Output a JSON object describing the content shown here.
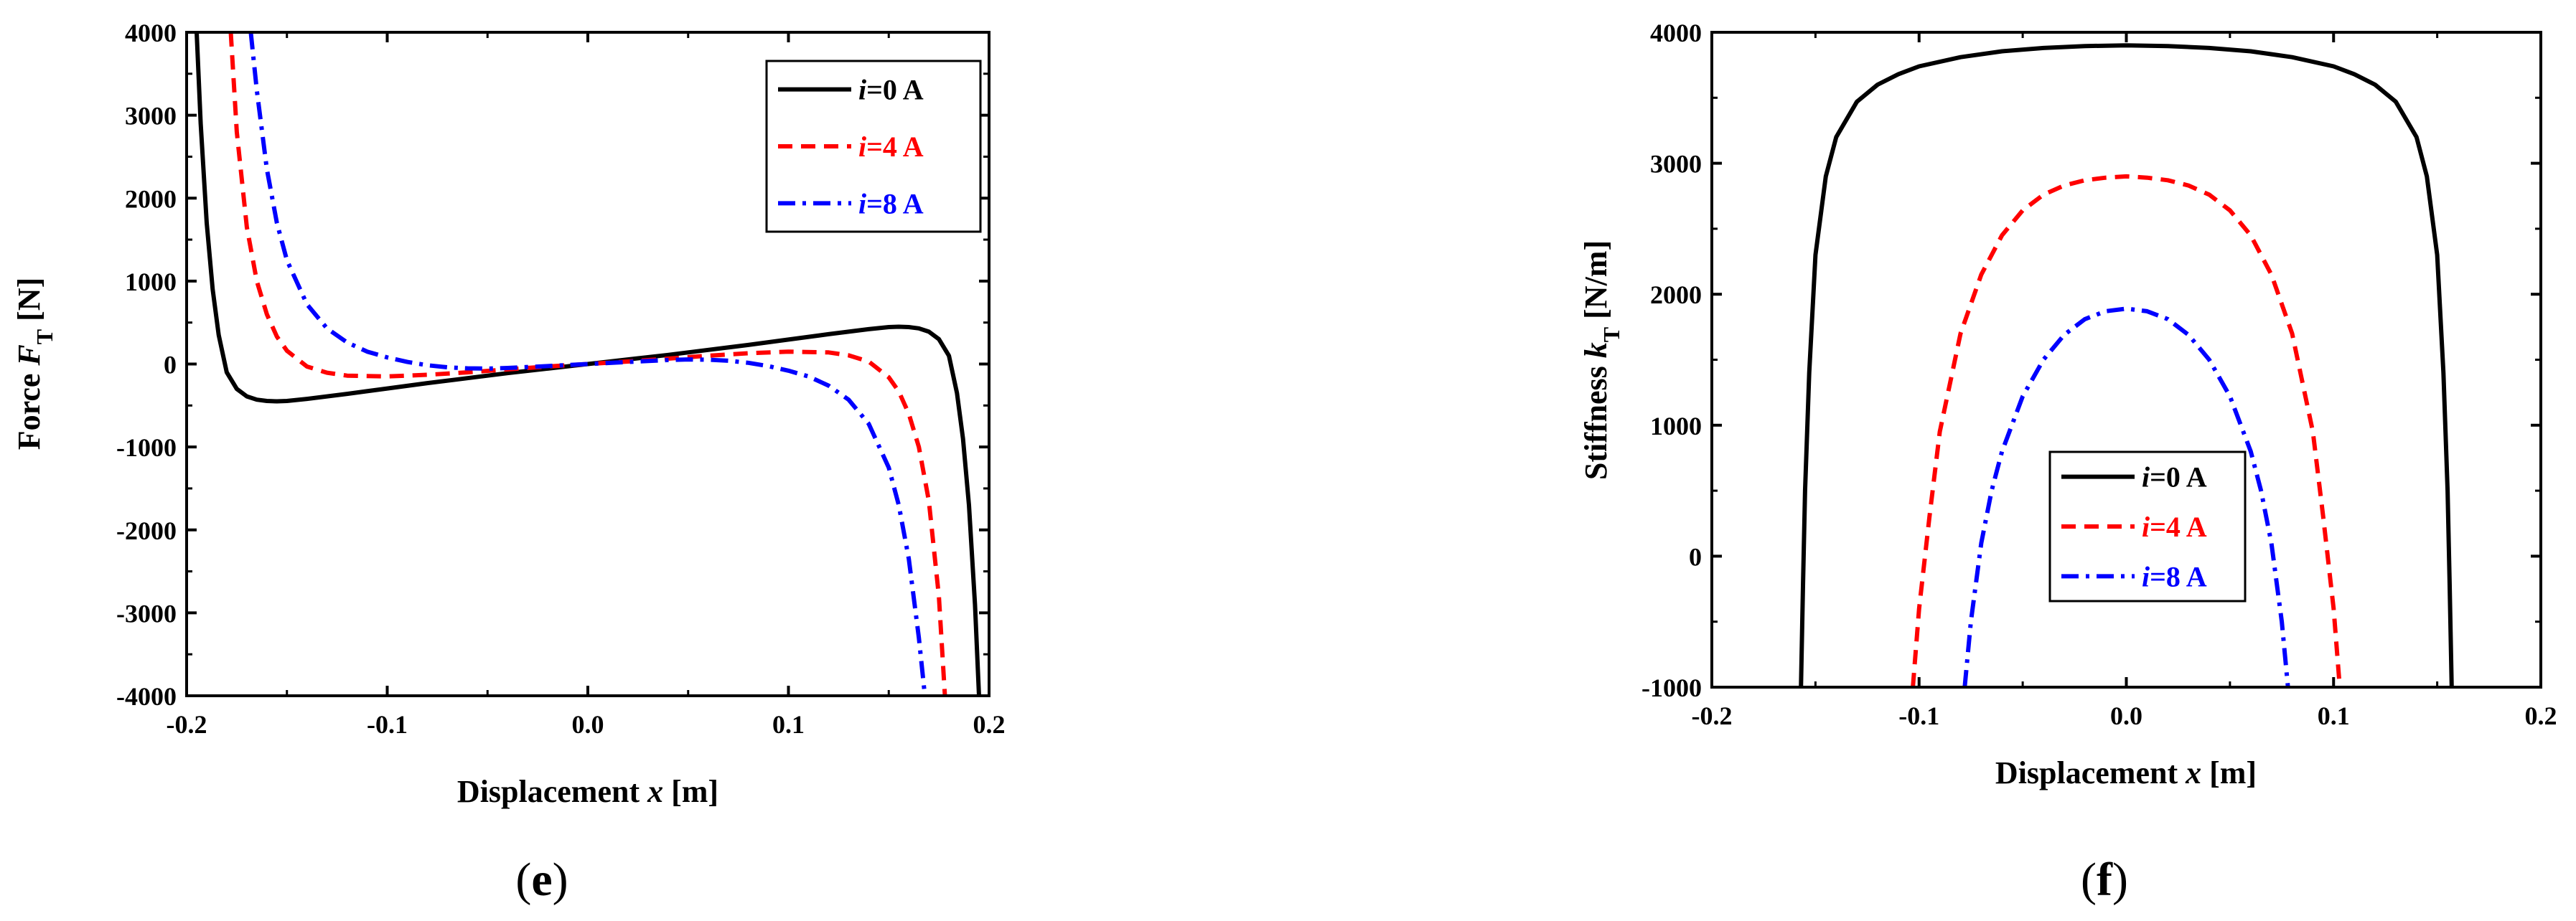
{
  "chart_data": [
    {
      "type": "line",
      "panel_label": [
        "(",
        "e",
        ")"
      ],
      "xlabel": [
        "Displacement ",
        "x",
        " [m]"
      ],
      "ylabel": [
        "Force ",
        "F",
        "T",
        " [N]"
      ],
      "xlim": [
        -0.2,
        0.2
      ],
      "ylim": [
        -4000,
        4000
      ],
      "x_ticks": [
        -0.2,
        -0.1,
        0.0,
        0.1,
        0.2
      ],
      "x_tick_labels": [
        "-0.2",
        "-0.1",
        "0.0",
        "0.1",
        "0.2"
      ],
      "y_ticks": [
        -4000,
        -3000,
        -2000,
        -1000,
        0,
        1000,
        2000,
        3000,
        4000
      ],
      "y_tick_labels": [
        "-4000",
        "-3000",
        "-2000",
        "-1000",
        "0",
        "1000",
        "2000",
        "3000",
        "4000"
      ],
      "legend_position": "top-right",
      "series": [
        {
          "name": [
            "i",
            "=0 A"
          ],
          "color": "#000000",
          "style": "solid",
          "x": [
            -0.195,
            -0.193,
            -0.19,
            -0.187,
            -0.184,
            -0.18,
            -0.175,
            -0.17,
            -0.165,
            -0.16,
            -0.155,
            -0.15,
            -0.14,
            -0.12,
            -0.1,
            -0.08,
            -0.06,
            -0.04,
            -0.02,
            0.0,
            0.02,
            0.04,
            0.06,
            0.08,
            0.1,
            0.12,
            0.14,
            0.15,
            0.155,
            0.16,
            0.165,
            0.17,
            0.175,
            0.18,
            0.184,
            0.187,
            0.19,
            0.193,
            0.195
          ],
          "y": [
            4000,
            2900,
            1700,
            900,
            350,
            -100,
            -300,
            -390,
            -430,
            -445,
            -450,
            -445,
            -420,
            -360,
            -295,
            -230,
            -170,
            -110,
            -55,
            0,
            55,
            110,
            170,
            230,
            295,
            360,
            420,
            445,
            450,
            445,
            430,
            390,
            300,
            100,
            -350,
            -900,
            -1700,
            -2900,
            -4000
          ]
        },
        {
          "name": [
            "i",
            "=4 A"
          ],
          "color": "#ff0000",
          "style": "dashed",
          "x": [
            -0.178,
            -0.175,
            -0.17,
            -0.165,
            -0.16,
            -0.155,
            -0.15,
            -0.14,
            -0.13,
            -0.12,
            -0.1,
            -0.08,
            -0.06,
            -0.04,
            -0.02,
            0.0,
            0.02,
            0.04,
            0.06,
            0.08,
            0.1,
            0.12,
            0.13,
            0.14,
            0.15,
            0.155,
            0.16,
            0.165,
            0.17,
            0.175,
            0.178
          ],
          "y": [
            4000,
            2800,
            1650,
            1000,
            600,
            330,
            160,
            -30,
            -105,
            -140,
            -150,
            -130,
            -100,
            -65,
            -30,
            0,
            30,
            65,
            100,
            130,
            150,
            140,
            105,
            30,
            -160,
            -330,
            -600,
            -1000,
            -1650,
            -2800,
            -4000
          ]
        },
        {
          "name": [
            "i",
            "=8 A"
          ],
          "color": "#0000ff",
          "style": "dashdot",
          "x": [
            -0.168,
            -0.165,
            -0.16,
            -0.155,
            -0.15,
            -0.14,
            -0.13,
            -0.12,
            -0.11,
            -0.1,
            -0.09,
            -0.08,
            -0.07,
            -0.06,
            -0.05,
            -0.04,
            -0.02,
            0.0,
            0.02,
            0.04,
            0.05,
            0.06,
            0.07,
            0.08,
            0.09,
            0.1,
            0.11,
            0.12,
            0.13,
            0.14,
            0.15,
            0.155,
            0.16,
            0.165,
            0.168
          ],
          "y": [
            4000,
            3300,
            2350,
            1700,
            1250,
            720,
            430,
            260,
            150,
            80,
            25,
            -15,
            -40,
            -52,
            -55,
            -48,
            -25,
            0,
            25,
            48,
            55,
            52,
            40,
            15,
            -25,
            -80,
            -150,
            -260,
            -430,
            -720,
            -1250,
            -1700,
            -2350,
            -3300,
            -4000
          ]
        }
      ]
    },
    {
      "type": "line",
      "panel_label": [
        "(",
        "f",
        ")"
      ],
      "xlabel": [
        "Displacement ",
        "x",
        " [m]"
      ],
      "ylabel": [
        "Stiffness ",
        "k",
        "T",
        " [N/m]"
      ],
      "xlim": [
        -0.2,
        0.2
      ],
      "ylim": [
        -1000,
        4000
      ],
      "x_ticks": [
        -0.2,
        -0.1,
        0.0,
        0.1,
        0.2
      ],
      "x_tick_labels": [
        "-0.2",
        "-0.1",
        "0.0",
        "0.1",
        "0.2"
      ],
      "y_ticks": [
        -1000,
        0,
        1000,
        2000,
        3000,
        4000
      ],
      "y_tick_labels": [
        "-1000",
        "0",
        "1000",
        "2000",
        "3000",
        "4000"
      ],
      "legend_position": "bottom-center",
      "series": [
        {
          "name": [
            "i",
            "=0 A"
          ],
          "color": "#000000",
          "style": "solid",
          "x": [
            -0.157,
            -0.156,
            -0.155,
            -0.153,
            -0.15,
            -0.145,
            -0.14,
            -0.13,
            -0.12,
            -0.11,
            -0.1,
            -0.08,
            -0.06,
            -0.04,
            -0.02,
            0.0,
            0.02,
            0.04,
            0.06,
            0.08,
            0.1,
            0.11,
            0.12,
            0.13,
            0.14,
            0.145,
            0.15,
            0.153,
            0.155,
            0.156,
            0.157
          ],
          "y": [
            -1000,
            -200,
            500,
            1400,
            2300,
            2900,
            3200,
            3470,
            3600,
            3680,
            3740,
            3810,
            3855,
            3880,
            3895,
            3900,
            3895,
            3880,
            3855,
            3810,
            3740,
            3680,
            3600,
            3470,
            3200,
            2900,
            2300,
            1400,
            500,
            -200,
            -1000
          ]
        },
        {
          "name": [
            "i",
            "=4 A"
          ],
          "color": "#ff0000",
          "style": "dashed",
          "x": [
            -0.103,
            -0.1,
            -0.095,
            -0.09,
            -0.08,
            -0.07,
            -0.06,
            -0.05,
            -0.04,
            -0.03,
            -0.02,
            -0.01,
            0.0,
            0.01,
            0.02,
            0.03,
            0.04,
            0.05,
            0.06,
            0.07,
            0.08,
            0.09,
            0.095,
            0.1,
            0.103
          ],
          "y": [
            -1000,
            -400,
            300,
            950,
            1700,
            2150,
            2450,
            2640,
            2760,
            2830,
            2870,
            2890,
            2900,
            2890,
            2870,
            2830,
            2760,
            2640,
            2450,
            2150,
            1700,
            950,
            300,
            -400,
            -1000
          ]
        },
        {
          "name": [
            "i",
            "=8 A"
          ],
          "color": "#0000ff",
          "style": "dashdot",
          "x": [
            -0.078,
            -0.075,
            -0.07,
            -0.065,
            -0.06,
            -0.05,
            -0.04,
            -0.03,
            -0.02,
            -0.01,
            0.0,
            0.01,
            0.02,
            0.03,
            0.04,
            0.05,
            0.06,
            0.065,
            0.07,
            0.075,
            0.078
          ],
          "y": [
            -1000,
            -500,
            100,
            500,
            800,
            1220,
            1500,
            1690,
            1810,
            1870,
            1890,
            1870,
            1810,
            1690,
            1500,
            1220,
            800,
            500,
            100,
            -500,
            -1000
          ]
        }
      ]
    }
  ]
}
